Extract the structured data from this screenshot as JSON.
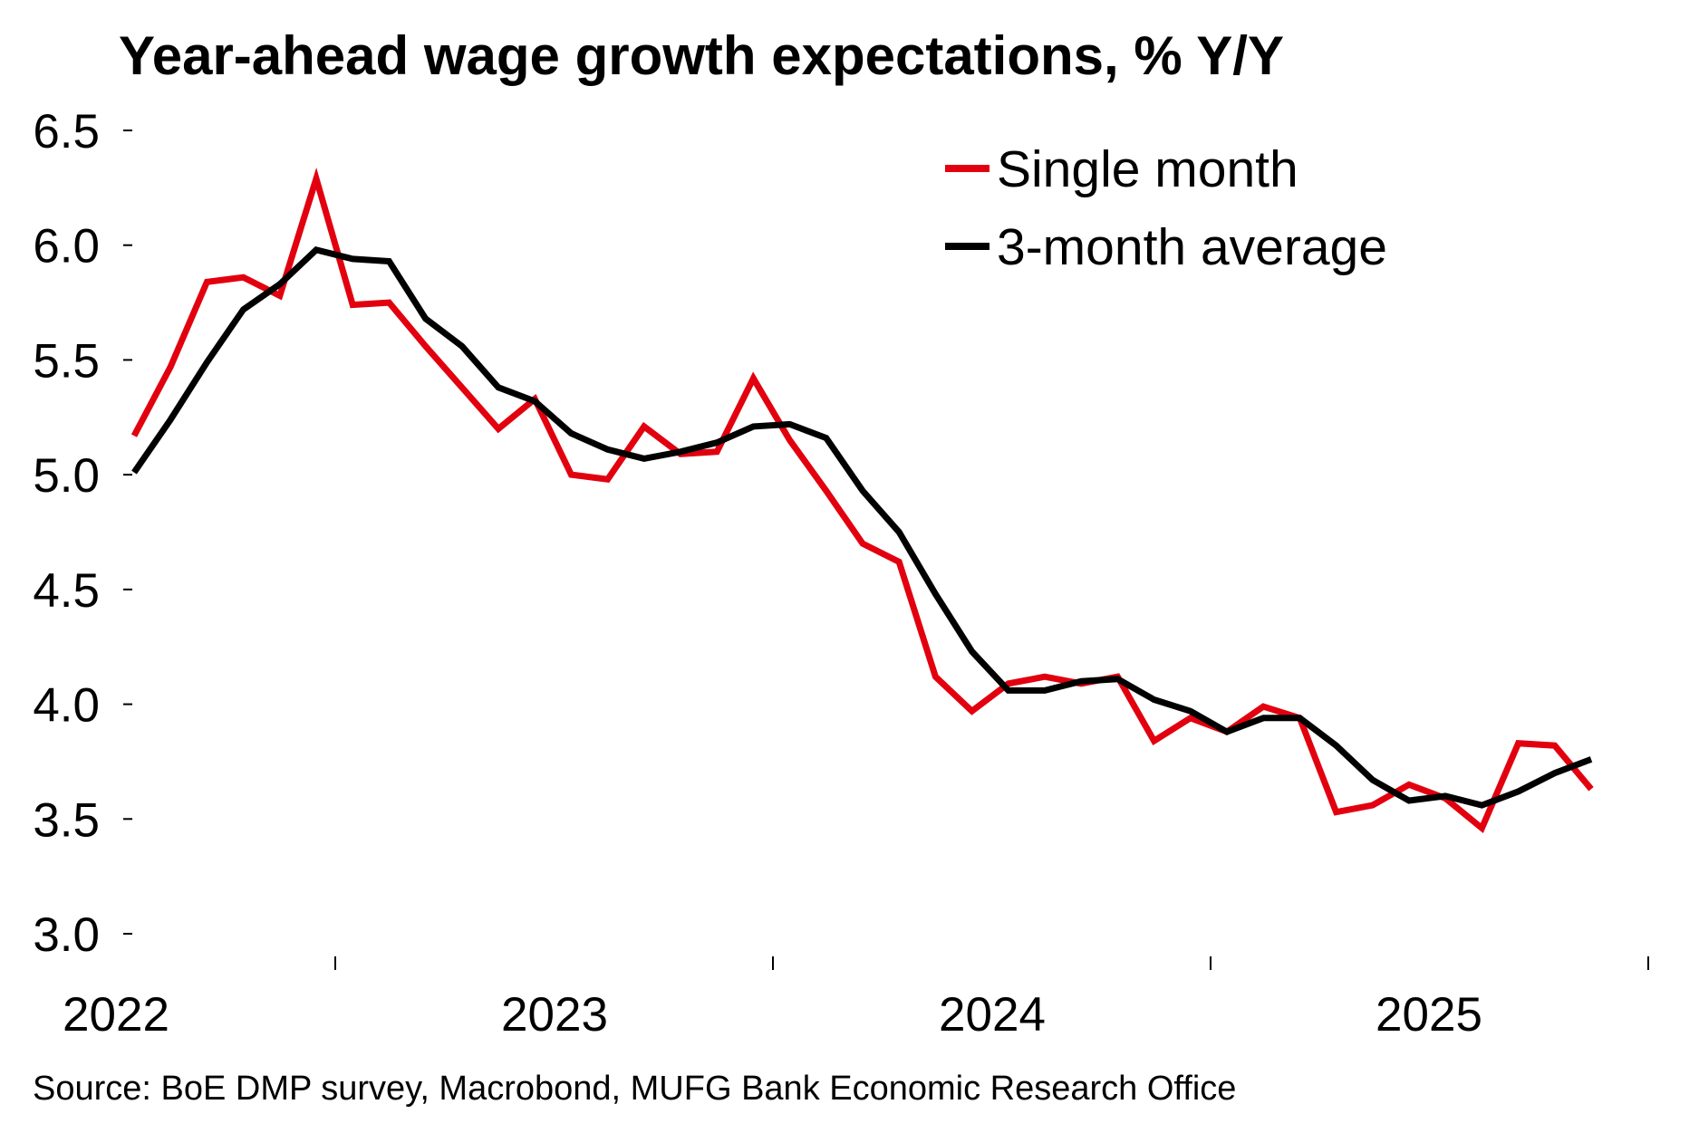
{
  "chart_data": {
    "type": "line",
    "title": "Year-ahead wage growth expectations, % Y/Y",
    "source": "Source: BoE DMP survey, Macrobond, MUFG Bank Economic Research Office",
    "ylim": [
      3.0,
      6.5
    ],
    "yticks": [
      "3.0",
      "3.5",
      "4.0",
      "4.5",
      "5.0",
      "5.5",
      "6.0",
      "6.5"
    ],
    "year_labels": [
      "2022",
      "2023",
      "2024",
      "2025"
    ],
    "x_start": "2022-02",
    "legend_position": "top-right",
    "series": [
      {
        "name": "Single month",
        "color": "#e2000f",
        "values": [
          5.17,
          5.47,
          5.84,
          5.86,
          5.78,
          6.29,
          5.74,
          5.75,
          5.56,
          5.38,
          5.2,
          5.33,
          5.0,
          4.98,
          5.21,
          5.09,
          5.1,
          5.42,
          5.15,
          4.93,
          4.7,
          4.62,
          4.12,
          3.97,
          4.09,
          4.12,
          4.09,
          4.12,
          3.84,
          3.94,
          3.88,
          3.99,
          3.94,
          3.53,
          3.56,
          3.65,
          3.59,
          3.46,
          3.83,
          3.82,
          3.63
        ]
      },
      {
        "name": "3-month average",
        "color": "#000000",
        "values": [
          5.01,
          5.24,
          5.49,
          5.72,
          5.83,
          5.98,
          5.94,
          5.93,
          5.68,
          5.56,
          5.38,
          5.32,
          5.18,
          5.11,
          5.07,
          5.1,
          5.14,
          5.21,
          5.22,
          5.16,
          4.93,
          4.75,
          4.48,
          4.23,
          4.06,
          4.06,
          4.1,
          4.11,
          4.02,
          3.97,
          3.88,
          3.94,
          3.94,
          3.82,
          3.67,
          3.58,
          3.6,
          3.56,
          3.62,
          3.7,
          3.76
        ]
      }
    ]
  }
}
